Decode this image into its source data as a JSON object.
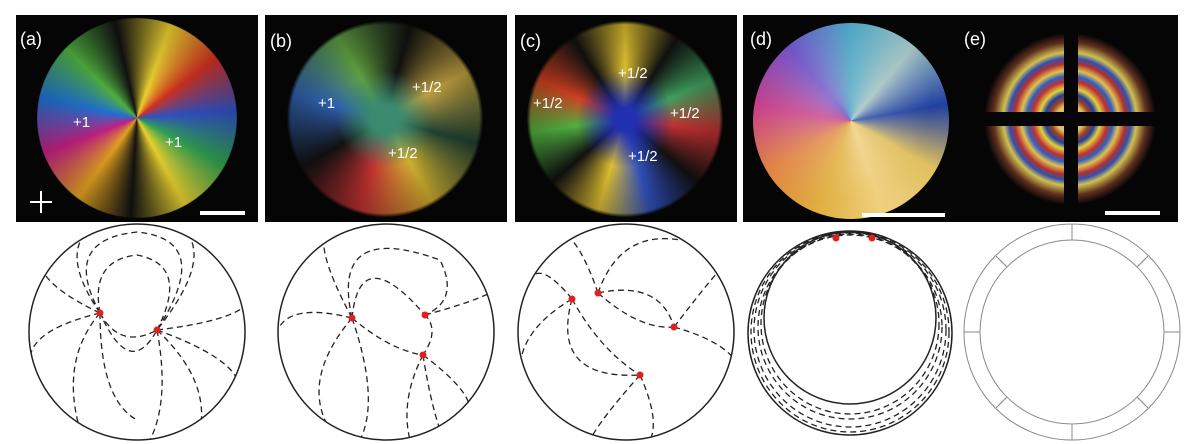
{
  "panels": [
    {
      "label": "(a)",
      "defects": [
        "+1",
        "+1"
      ]
    },
    {
      "label": "(b)",
      "defects": [
        "+1",
        "+1/2",
        "+1/2"
      ]
    },
    {
      "label": "(c)",
      "defects": [
        "+1/2",
        "+1/2",
        "+1/2",
        "+1/2"
      ]
    },
    {
      "label": "(d)"
    },
    {
      "label": "(e)"
    }
  ]
}
